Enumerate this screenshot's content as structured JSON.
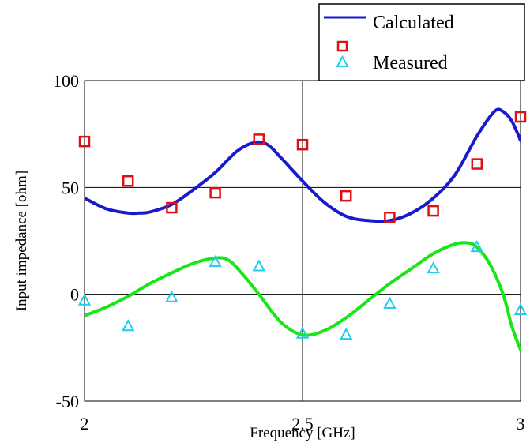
{
  "chart_data": {
    "type": "line",
    "xlabel": "Frequency [GHz]",
    "ylabel": "Input impedance [ohm]",
    "xlim": [
      2,
      3
    ],
    "ylim": [
      -50,
      100
    ],
    "x_ticks": [
      "2",
      "2.5",
      "3"
    ],
    "y_ticks": [
      "-50",
      "0",
      "50",
      "100"
    ],
    "x_tick_values": [
      2,
      2.5,
      3
    ],
    "y_tick_values": [
      -50,
      0,
      50,
      100
    ],
    "grid": true,
    "legend_position": "top-right",
    "legend": {
      "line_label": "Calculated",
      "marker_label": "Measured"
    },
    "calculated": [
      {
        "name": "",
        "color": "#1a1acc",
        "x": [
          2.0,
          2.05,
          2.1,
          2.125,
          2.15,
          2.2,
          2.25,
          2.3,
          2.35,
          2.39,
          2.42,
          2.45,
          2.5,
          2.55,
          2.6,
          2.65,
          2.7,
          2.75,
          2.8,
          2.85,
          2.9,
          2.94,
          2.96,
          2.98,
          3.0
        ],
        "y": [
          45,
          40,
          38,
          38,
          38.5,
          42,
          49,
          57,
          67,
          71,
          70,
          64,
          53,
          43,
          36.5,
          34.5,
          34.5,
          38,
          45,
          56,
          74,
          85.5,
          85.5,
          81,
          72
        ]
      },
      {
        "name": "",
        "color": "#19e619",
        "x": [
          2.0,
          2.05,
          2.1,
          2.15,
          2.2,
          2.25,
          2.3,
          2.33,
          2.36,
          2.4,
          2.45,
          2.5,
          2.55,
          2.6,
          2.65,
          2.7,
          2.75,
          2.8,
          2.85,
          2.88,
          2.9,
          2.93,
          2.96,
          2.98,
          3.0
        ],
        "y": [
          -10,
          -6,
          -1,
          5,
          10,
          14.5,
          17,
          16,
          10,
          0,
          -13,
          -19,
          -17,
          -11,
          -3,
          5,
          12,
          19,
          23.5,
          24,
          22,
          14,
          0,
          -15,
          -26
        ]
      }
    ],
    "measured": [
      {
        "name": "",
        "marker": "square",
        "color": "#dd1111",
        "x": [
          2.0,
          2.1,
          2.2,
          2.3,
          2.4,
          2.5,
          2.6,
          2.7,
          2.8,
          2.9,
          3.0
        ],
        "y": [
          71.5,
          53,
          40.5,
          47.5,
          72.5,
          70,
          46,
          36,
          39,
          61,
          83
        ]
      },
      {
        "name": "",
        "marker": "triangle",
        "color": "#22ccee",
        "x": [
          2.0,
          2.1,
          2.2,
          2.3,
          2.4,
          2.5,
          2.6,
          2.7,
          2.8,
          2.9,
          3.0
        ],
        "y": [
          -3,
          -15,
          -1.5,
          15,
          13,
          -18.5,
          -19,
          -4.5,
          12,
          22,
          -7.5
        ]
      }
    ]
  }
}
